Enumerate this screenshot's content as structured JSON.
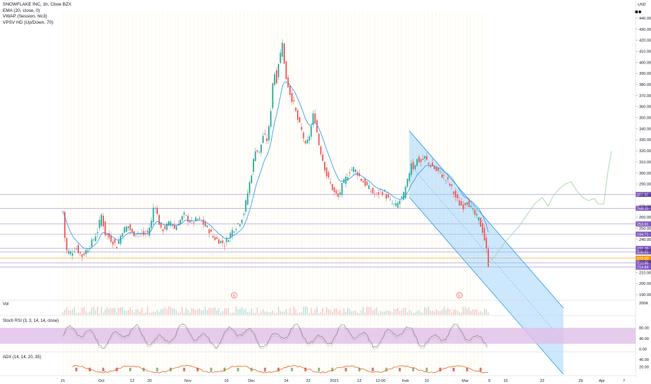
{
  "header": {
    "symbol_line": "SNOWFLAKE INC, 1h, Cboe BZX",
    "indicators": [
      "EMA (20, close, 0)",
      "VWAP (Session, hlc3)",
      "VPSV HD (Up/Down, 70)"
    ],
    "currency": "USD"
  },
  "panels": {
    "volume_label": "Vol",
    "volume_axis_label": "200K",
    "stoch_label": "Stoch RSI (3, 3, 14, 14, close)",
    "stoch_ticks": [
      "80.00",
      "40.00",
      "0.00"
    ],
    "adx_label": "ADX (14, 14, 20, 35)",
    "adx_ticks": [
      "40.00",
      "20.00"
    ]
  },
  "colors": {
    "candle_up": "#26a69a",
    "candle_down": "#ef5350",
    "ema": "#2196f3",
    "channel_fill": "#90caf9",
    "channel_edge": "#2196f3",
    "projection": "#a5d6a7",
    "level_line": "#9c8fd6",
    "price_tag": "#7e57c2",
    "stoch_band": "#e1bee7",
    "stoch_line": "#7b7b7b",
    "current_tag": "#ff9800"
  },
  "chart_data": {
    "type": "line",
    "symbol": "SNOWFLAKE INC",
    "interval": "1h",
    "exchange": "Cboe BZX",
    "y_unit": "USD",
    "ylim": [
      185,
      445
    ],
    "y_ticks": [
      "440.00",
      "430.00",
      "420.00",
      "410.00",
      "400.00",
      "390.00",
      "380.00",
      "370.00",
      "360.00",
      "350.00",
      "340.00",
      "330.00",
      "320.00",
      "310.00",
      "300.00",
      "290.00",
      "280.00",
      "270.00",
      "260.00",
      "250.00",
      "240.00",
      "230.00",
      "220.00",
      "210.00",
      "200.00",
      "190.00"
    ],
    "x_ticks": [
      {
        "label": "21",
        "bar": 0
      },
      {
        "label": "Oct",
        "bar": 40
      },
      {
        "label": "12",
        "bar": 72
      },
      {
        "label": "20",
        "bar": 90
      },
      {
        "label": "Nov",
        "bar": 130
      },
      {
        "label": "16",
        "bar": 170
      },
      {
        "label": "Dec",
        "bar": 196
      },
      {
        "label": "14",
        "bar": 232
      },
      {
        "label": "22",
        "bar": 255
      },
      {
        "label": "2021",
        "bar": 282
      },
      {
        "label": "12",
        "bar": 308
      },
      {
        "label": "12:00",
        "bar": 330
      },
      {
        "label": "Feb",
        "bar": 356
      },
      {
        "label": "10",
        "bar": 378
      },
      {
        "label": "Mar",
        "bar": 418
      },
      {
        "label": "9",
        "bar": 443
      },
      {
        "label": "15",
        "bar": 460
      },
      {
        "label": "22",
        "bar": 498
      },
      {
        "label": "29",
        "bar": 538
      },
      {
        "label": "Apr",
        "bar": 560
      },
      {
        "label": "7",
        "bar": 583
      }
    ],
    "last_bar": 442,
    "price_path": [
      [
        0,
        265
      ],
      [
        3,
        230
      ],
      [
        8,
        228
      ],
      [
        14,
        232
      ],
      [
        20,
        225
      ],
      [
        26,
        232
      ],
      [
        32,
        240
      ],
      [
        36,
        248
      ],
      [
        40,
        262
      ],
      [
        44,
        245
      ],
      [
        50,
        240
      ],
      [
        56,
        234
      ],
      [
        62,
        248
      ],
      [
        68,
        252
      ],
      [
        72,
        245
      ],
      [
        78,
        246
      ],
      [
        84,
        244
      ],
      [
        88,
        246
      ],
      [
        92,
        256
      ],
      [
        95,
        275
      ],
      [
        98,
        262
      ],
      [
        102,
        248
      ],
      [
        108,
        252
      ],
      [
        112,
        256
      ],
      [
        116,
        250
      ],
      [
        120,
        255
      ],
      [
        126,
        262
      ],
      [
        130,
        258
      ],
      [
        134,
        255
      ],
      [
        140,
        258
      ],
      [
        146,
        254
      ],
      [
        152,
        248
      ],
      [
        156,
        242
      ],
      [
        160,
        240
      ],
      [
        164,
        238
      ],
      [
        168,
        236
      ],
      [
        172,
        242
      ],
      [
        176,
        248
      ],
      [
        180,
        252
      ],
      [
        184,
        256
      ],
      [
        188,
        264
      ],
      [
        192,
        282
      ],
      [
        196,
        300
      ],
      [
        200,
        322
      ],
      [
        204,
        318
      ],
      [
        208,
        334
      ],
      [
        212,
        330
      ],
      [
        214,
        340
      ],
      [
        216,
        358
      ],
      [
        218,
        382
      ],
      [
        220,
        390
      ],
      [
        222,
        384
      ],
      [
        224,
        400
      ],
      [
        226,
        408
      ],
      [
        228,
        420
      ],
      [
        230,
        398
      ],
      [
        232,
        386
      ],
      [
        236,
        372
      ],
      [
        240,
        362
      ],
      [
        244,
        348
      ],
      [
        248,
        338
      ],
      [
        250,
        332
      ],
      [
        252,
        324
      ],
      [
        254,
        328
      ],
      [
        256,
        334
      ],
      [
        258,
        342
      ],
      [
        260,
        352
      ],
      [
        262,
        348
      ],
      [
        266,
        326
      ],
      [
        270,
        312
      ],
      [
        274,
        298
      ],
      [
        278,
        290
      ],
      [
        282,
        282
      ],
      [
        286,
        278
      ],
      [
        290,
        288
      ],
      [
        294,
        295
      ],
      [
        298,
        302
      ],
      [
        302,
        304
      ],
      [
        306,
        300
      ],
      [
        310,
        294
      ],
      [
        314,
        290
      ],
      [
        318,
        286
      ],
      [
        322,
        282
      ],
      [
        326,
        280
      ],
      [
        330,
        284
      ],
      [
        334,
        282
      ],
      [
        338,
        276
      ],
      [
        342,
        272
      ],
      [
        346,
        270
      ],
      [
        350,
        275
      ],
      [
        354,
        280
      ],
      [
        358,
        292
      ],
      [
        362,
        310
      ],
      [
        364,
        305
      ],
      [
        368,
        312
      ],
      [
        372,
        310
      ],
      [
        376,
        314
      ],
      [
        380,
        308
      ],
      [
        384,
        306
      ],
      [
        388,
        302
      ],
      [
        392,
        300
      ],
      [
        396,
        296
      ],
      [
        400,
        292
      ],
      [
        404,
        286
      ],
      [
        408,
        278
      ],
      [
        412,
        272
      ],
      [
        416,
        270
      ],
      [
        420,
        276
      ],
      [
        424,
        268
      ],
      [
        428,
        262
      ],
      [
        432,
        258
      ],
      [
        436,
        248
      ],
      [
        438,
        240
      ],
      [
        440,
        230
      ],
      [
        442,
        218
      ]
    ],
    "channel": {
      "upper": [
        [
          360,
          338
        ],
        [
          480,
          218
        ]
      ],
      "lower": [
        [
          360,
          278
        ],
        [
          480,
          158
        ]
      ],
      "right_end_bar": 520
    },
    "projection_path": [
      [
        442,
        218
      ],
      [
        450,
        226
      ],
      [
        458,
        236
      ],
      [
        466,
        244
      ],
      [
        474,
        252
      ],
      [
        482,
        262
      ],
      [
        490,
        272
      ],
      [
        498,
        278
      ],
      [
        504,
        270
      ],
      [
        510,
        280
      ],
      [
        516,
        286
      ],
      [
        522,
        290
      ],
      [
        528,
        292
      ],
      [
        534,
        284
      ],
      [
        540,
        278
      ],
      [
        546,
        275
      ],
      [
        552,
        277
      ],
      [
        556,
        272
      ],
      [
        562,
        272
      ],
      [
        566,
        300
      ],
      [
        570,
        320
      ]
    ],
    "horizontal_levels": [
      {
        "price": 280.62,
        "label": "280.62",
        "tagged": true
      },
      {
        "price": 268.1,
        "label": "268.10",
        "tagged": true
      },
      {
        "price": 253.91,
        "label": "253.91",
        "tagged": true
      },
      {
        "price": 244.71,
        "label": "244.71",
        "tagged": true
      },
      {
        "price": 231.79,
        "label": "231.79",
        "tagged": true
      },
      {
        "price": 228.61,
        "label": "228.61",
        "tagged": true
      },
      {
        "price": 223.0,
        "label": "223.00",
        "tagged": false,
        "current": true
      },
      {
        "price": 218.86,
        "label": "218.86",
        "tagged": true
      },
      {
        "price": 214.84,
        "label": "214.84",
        "tagged": true
      }
    ],
    "current_time_label": "03:07",
    "event_markers": [
      {
        "bar": 178,
        "label": "E"
      },
      {
        "bar": 412,
        "label": "E"
      }
    ]
  }
}
